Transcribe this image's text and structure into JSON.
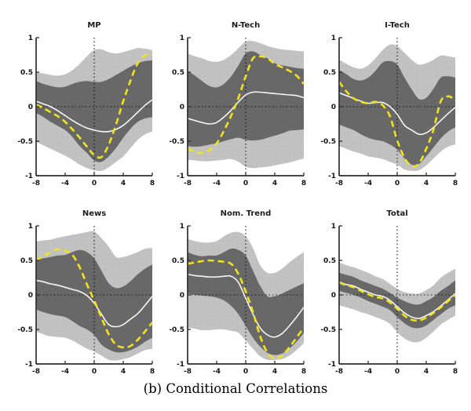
{
  "figure": {
    "caption": "(b) Conditional Correlations"
  },
  "colors": {
    "background": "#ffffff",
    "outer_band": "#cbcbcb",
    "outer_band_dot": "#9f9f9f",
    "inner_band": "#686868",
    "median_line": "#f5f5f5",
    "dashed_line": "#f0e31c",
    "axis": "#2e2e2e",
    "zero_line": "#141414",
    "text": "#141414"
  },
  "chart_data": {
    "type": "area",
    "x": [
      -8,
      -7,
      -6,
      -5,
      -4,
      -3,
      -2,
      -1,
      0,
      1,
      2,
      3,
      4,
      5,
      6,
      7,
      8
    ],
    "xlim": [
      -8,
      8
    ],
    "ylim": [
      -1,
      1
    ],
    "xticks": [
      -8,
      -4,
      0,
      4,
      8
    ],
    "yticks": [
      1,
      0.5,
      0,
      -0.5,
      -1
    ],
    "grid": "zero-lines-dotted",
    "legend": "none",
    "series_roles": {
      "outer_band": "90% band (light gray, stippled)",
      "inner_band": "68% band (dark gray)",
      "median": "white solid line",
      "dashed": "yellow dashed line"
    },
    "panels": [
      {
        "title": "MP",
        "outer_upper": [
          0.5,
          0.48,
          0.46,
          0.45,
          0.47,
          0.53,
          0.62,
          0.73,
          0.82,
          0.83,
          0.79,
          0.77,
          0.79,
          0.82,
          0.85,
          0.84,
          0.82
        ],
        "outer_lower": [
          -0.51,
          -0.56,
          -0.61,
          -0.66,
          -0.71,
          -0.77,
          -0.84,
          -0.89,
          -0.92,
          -0.93,
          -0.88,
          -0.8,
          -0.72,
          -0.6,
          -0.48,
          -0.4,
          -0.36
        ],
        "inner_upper": [
          0.37,
          0.33,
          0.3,
          0.28,
          0.29,
          0.33,
          0.36,
          0.37,
          0.36,
          0.36,
          0.4,
          0.46,
          0.52,
          0.58,
          0.63,
          0.66,
          0.67
        ],
        "inner_lower": [
          -0.09,
          -0.15,
          -0.22,
          -0.28,
          -0.34,
          -0.44,
          -0.57,
          -0.67,
          -0.78,
          -0.8,
          -0.72,
          -0.6,
          -0.45,
          -0.32,
          -0.22,
          -0.17,
          -0.15
        ],
        "median": [
          0.08,
          0.04,
          0.0,
          -0.06,
          -0.13,
          -0.2,
          -0.26,
          -0.31,
          -0.34,
          -0.36,
          -0.36,
          -0.33,
          -0.27,
          -0.18,
          -0.08,
          0.02,
          0.1
        ],
        "dashed": [
          0.03,
          -0.02,
          -0.08,
          -0.14,
          -0.22,
          -0.33,
          -0.45,
          -0.58,
          -0.7,
          -0.73,
          -0.55,
          -0.26,
          0.08,
          0.38,
          0.63,
          0.74,
          0.76
        ]
      },
      {
        "title": "N-Tech",
        "outer_upper": [
          0.77,
          0.73,
          0.7,
          0.66,
          0.65,
          0.68,
          0.75,
          0.85,
          0.94,
          0.95,
          0.92,
          0.88,
          0.85,
          0.83,
          0.82,
          0.81,
          0.8
        ],
        "outer_lower": [
          -0.77,
          -0.78,
          -0.79,
          -0.79,
          -0.78,
          -0.77,
          -0.76,
          -0.8,
          -0.87,
          -0.89,
          -0.88,
          -0.87,
          -0.85,
          -0.83,
          -0.81,
          -0.78,
          -0.75
        ],
        "inner_upper": [
          0.52,
          0.45,
          0.37,
          0.3,
          0.28,
          0.33,
          0.44,
          0.6,
          0.77,
          0.8,
          0.75,
          0.7,
          0.63,
          0.6,
          0.58,
          0.56,
          0.55
        ],
        "inner_lower": [
          -0.57,
          -0.58,
          -0.57,
          -0.55,
          -0.53,
          -0.5,
          -0.47,
          -0.45,
          -0.48,
          -0.49,
          -0.48,
          -0.45,
          -0.42,
          -0.39,
          -0.35,
          -0.34,
          -0.33
        ],
        "median": [
          -0.17,
          -0.2,
          -0.23,
          -0.25,
          -0.23,
          -0.15,
          -0.05,
          0.07,
          0.17,
          0.21,
          0.21,
          0.2,
          0.19,
          0.18,
          0.17,
          0.16,
          0.13
        ],
        "dashed": [
          -0.61,
          -0.65,
          -0.67,
          -0.63,
          -0.53,
          -0.35,
          -0.13,
          0.13,
          0.44,
          0.7,
          0.73,
          0.7,
          0.62,
          0.57,
          0.52,
          0.45,
          0.33
        ]
      },
      {
        "title": "I-Tech",
        "outer_upper": [
          0.68,
          0.62,
          0.57,
          0.55,
          0.6,
          0.7,
          0.82,
          0.9,
          0.88,
          0.78,
          0.68,
          0.61,
          0.63,
          0.68,
          0.74,
          0.73,
          0.71
        ],
        "outer_lower": [
          -0.57,
          -0.61,
          -0.65,
          -0.68,
          -0.72,
          -0.74,
          -0.76,
          -0.8,
          -0.84,
          -0.91,
          -0.93,
          -0.92,
          -0.85,
          -0.75,
          -0.65,
          -0.58,
          -0.55
        ],
        "inner_upper": [
          0.53,
          0.47,
          0.4,
          0.38,
          0.42,
          0.52,
          0.64,
          0.66,
          0.61,
          0.42,
          0.25,
          0.11,
          0.13,
          0.26,
          0.42,
          0.44,
          0.42
        ],
        "inner_lower": [
          -0.26,
          -0.3,
          -0.34,
          -0.4,
          -0.45,
          -0.48,
          -0.5,
          -0.55,
          -0.62,
          -0.75,
          -0.84,
          -0.83,
          -0.72,
          -0.59,
          -0.46,
          -0.36,
          -0.3
        ],
        "median": [
          0.2,
          0.16,
          0.12,
          0.08,
          0.05,
          0.06,
          0.06,
          0.0,
          -0.11,
          -0.27,
          -0.34,
          -0.4,
          -0.38,
          -0.3,
          -0.2,
          -0.1,
          -0.01
        ],
        "dashed": [
          0.36,
          0.22,
          0.12,
          0.07,
          0.05,
          0.07,
          0.02,
          -0.14,
          -0.49,
          -0.74,
          -0.86,
          -0.82,
          -0.61,
          -0.33,
          0.08,
          0.15,
          0.1
        ]
      },
      {
        "title": "News",
        "outer_upper": [
          0.77,
          0.79,
          0.8,
          0.83,
          0.85,
          0.87,
          0.89,
          0.91,
          0.92,
          0.82,
          0.7,
          0.55,
          0.55,
          0.58,
          0.62,
          0.67,
          0.68
        ],
        "outer_lower": [
          -0.53,
          -0.57,
          -0.6,
          -0.61,
          -0.62,
          -0.66,
          -0.72,
          -0.78,
          -0.82,
          -0.88,
          -0.94,
          -0.95,
          -0.93,
          -0.9,
          -0.85,
          -0.8,
          -0.78
        ],
        "inner_upper": [
          0.52,
          0.53,
          0.55,
          0.57,
          0.58,
          0.62,
          0.65,
          0.62,
          0.53,
          0.35,
          0.17,
          0.1,
          0.12,
          0.2,
          0.3,
          0.38,
          0.44
        ],
        "inner_lower": [
          -0.21,
          -0.25,
          -0.28,
          -0.3,
          -0.32,
          -0.38,
          -0.45,
          -0.5,
          -0.58,
          -0.72,
          -0.79,
          -0.83,
          -0.83,
          -0.8,
          -0.75,
          -0.68,
          -0.62
        ],
        "median": [
          0.21,
          0.19,
          0.16,
          0.14,
          0.11,
          0.08,
          0.05,
          -0.01,
          -0.12,
          -0.28,
          -0.43,
          -0.46,
          -0.43,
          -0.35,
          -0.27,
          -0.15,
          -0.02
        ],
        "dashed": [
          0.5,
          0.56,
          0.62,
          0.66,
          0.64,
          0.58,
          0.4,
          0.15,
          -0.08,
          -0.33,
          -0.57,
          -0.72,
          -0.76,
          -0.74,
          -0.65,
          -0.53,
          -0.4
        ]
      },
      {
        "title": "Nom. Trend",
        "outer_upper": [
          0.81,
          0.78,
          0.76,
          0.76,
          0.78,
          0.85,
          0.9,
          0.91,
          0.85,
          0.68,
          0.43,
          0.32,
          0.32,
          0.38,
          0.47,
          0.55,
          0.62
        ],
        "outer_lower": [
          -0.47,
          -0.49,
          -0.51,
          -0.51,
          -0.5,
          -0.5,
          -0.52,
          -0.55,
          -0.66,
          -0.78,
          -0.89,
          -0.94,
          -0.94,
          -0.93,
          -0.88,
          -0.8,
          -0.7
        ],
        "inner_upper": [
          0.62,
          0.58,
          0.56,
          0.57,
          0.57,
          0.62,
          0.67,
          0.65,
          0.57,
          0.35,
          0.13,
          -0.02,
          -0.02,
          0.02,
          0.07,
          0.12,
          0.17
        ],
        "inner_lower": [
          0.02,
          0.0,
          -0.01,
          -0.02,
          -0.04,
          -0.08,
          -0.16,
          -0.28,
          -0.45,
          -0.62,
          -0.75,
          -0.84,
          -0.87,
          -0.85,
          -0.78,
          -0.68,
          -0.55
        ],
        "median": [
          0.3,
          0.28,
          0.27,
          0.26,
          0.26,
          0.27,
          0.27,
          0.18,
          -0.05,
          -0.28,
          -0.48,
          -0.58,
          -0.61,
          -0.56,
          -0.45,
          -0.32,
          -0.18
        ],
        "dashed": [
          0.45,
          0.47,
          0.49,
          0.5,
          0.49,
          0.48,
          0.45,
          0.3,
          0.05,
          -0.25,
          -0.6,
          -0.84,
          -0.92,
          -0.88,
          -0.76,
          -0.62,
          -0.47
        ]
      },
      {
        "title": "Total",
        "outer_upper": [
          0.47,
          0.43,
          0.4,
          0.36,
          0.32,
          0.27,
          0.23,
          0.16,
          0.09,
          0.04,
          0.02,
          0.02,
          0.07,
          0.14,
          0.25,
          0.32,
          0.38
        ],
        "outer_lower": [
          -0.15,
          -0.18,
          -0.21,
          -0.25,
          -0.28,
          -0.32,
          -0.36,
          -0.42,
          -0.54,
          -0.63,
          -0.68,
          -0.68,
          -0.62,
          -0.53,
          -0.43,
          -0.36,
          -0.3
        ],
        "inner_upper": [
          0.32,
          0.29,
          0.26,
          0.21,
          0.17,
          0.13,
          0.09,
          0.03,
          -0.04,
          -0.09,
          -0.13,
          -0.14,
          -0.09,
          -0.03,
          0.06,
          0.13,
          0.21
        ],
        "inner_lower": [
          0.06,
          0.03,
          0.0,
          -0.04,
          -0.09,
          -0.13,
          -0.17,
          -0.22,
          -0.32,
          -0.41,
          -0.47,
          -0.48,
          -0.44,
          -0.36,
          -0.28,
          -0.2,
          -0.15
        ],
        "median": [
          0.19,
          0.15,
          0.13,
          0.08,
          0.04,
          0.0,
          -0.02,
          -0.08,
          -0.17,
          -0.26,
          -0.32,
          -0.34,
          -0.3,
          -0.24,
          -0.16,
          -0.07,
          0.02
        ],
        "dashed": [
          0.18,
          0.14,
          0.11,
          0.06,
          0.01,
          -0.03,
          -0.05,
          -0.11,
          -0.2,
          -0.3,
          -0.36,
          -0.37,
          -0.33,
          -0.26,
          -0.18,
          -0.09,
          0.0
        ]
      }
    ]
  }
}
